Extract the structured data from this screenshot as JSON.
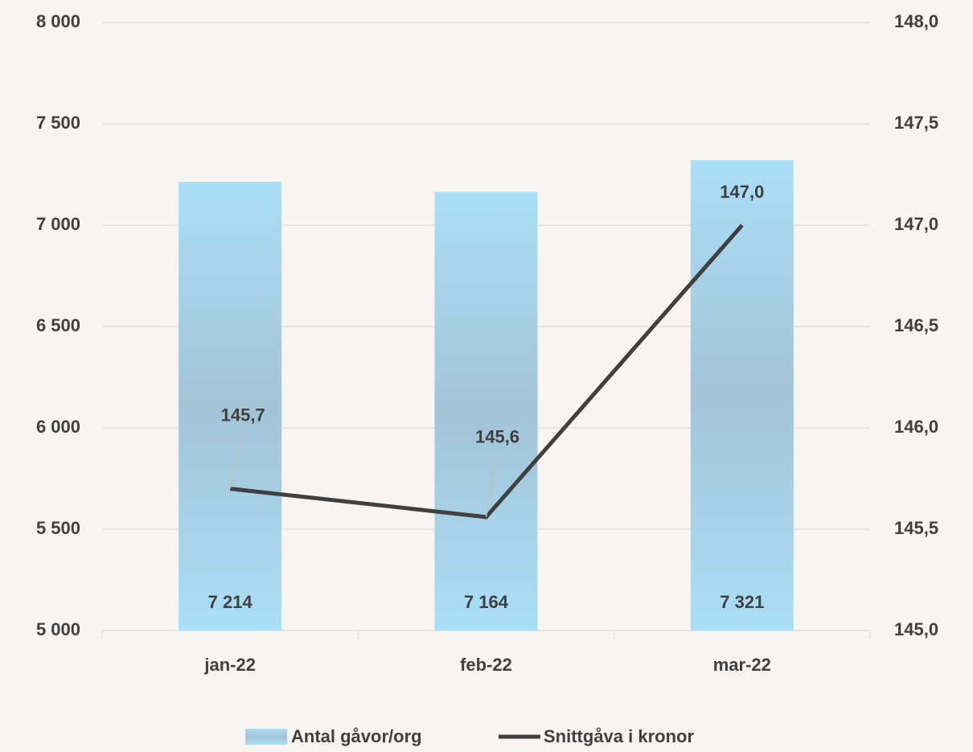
{
  "chart_data": {
    "type": "bar_line",
    "categories": [
      "jan-22",
      "feb-22",
      "mar-22"
    ],
    "series": [
      {
        "name": "Antal gåvor/org",
        "type": "bar",
        "color": "#aadff7",
        "values": [
          7214,
          7164,
          7321
        ],
        "value_labels": [
          "7 214",
          "7 164",
          "7 321"
        ]
      },
      {
        "name": "Snittgåva i kronor",
        "type": "line",
        "axis": "y2",
        "color": "#404040",
        "values": [
          145.7,
          145.56,
          147.0
        ],
        "value_labels": [
          "145,7",
          "145,6",
          "147,0"
        ]
      }
    ],
    "ylim": [
      5000,
      8000
    ],
    "yticks": [
      {
        "value": 5000,
        "label": "5 000"
      },
      {
        "value": 5500,
        "label": "5 500"
      },
      {
        "value": 6000,
        "label": "6 000"
      },
      {
        "value": 6500,
        "label": "6 500"
      },
      {
        "value": 7000,
        "label": "7 000"
      },
      {
        "value": 7500,
        "label": "7 500"
      },
      {
        "value": 8000,
        "label": "8 000"
      }
    ],
    "y2lim": [
      145,
      148
    ],
    "y2ticks": [
      {
        "value": 145,
        "label": "145,0"
      },
      {
        "value": 145.5,
        "label": "145,5"
      },
      {
        "value": 146,
        "label": "146,0"
      },
      {
        "value": 146.5,
        "label": "146,5"
      },
      {
        "value": 147,
        "label": "147,0"
      },
      {
        "value": 147.5,
        "label": "147,5"
      },
      {
        "value": 148,
        "label": "148,0"
      }
    ],
    "grid": true,
    "legend": "bottom"
  }
}
